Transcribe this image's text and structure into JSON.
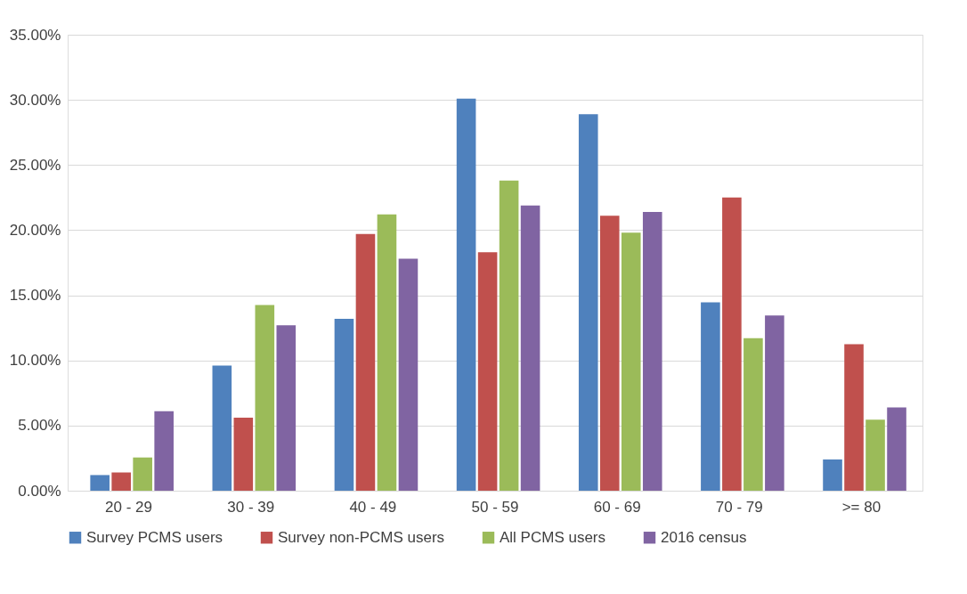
{
  "chart_data": {
    "type": "bar",
    "categories": [
      "20 - 29",
      "30 - 39",
      "40 - 49",
      "50 - 59",
      "60 - 69",
      "70 - 79",
      ">= 80"
    ],
    "series": [
      {
        "name": "Survey PCMS users",
        "color": "#4f81bd",
        "values": [
          1.2,
          9.6,
          13.2,
          30.1,
          28.9,
          14.45,
          2.4
        ]
      },
      {
        "name": "Survey non-PCMS users",
        "color": "#c0504d",
        "values": [
          1.4,
          5.6,
          19.7,
          18.3,
          21.1,
          22.5,
          11.25
        ]
      },
      {
        "name": "All PCMS users",
        "color": "#9bbb59",
        "values": [
          2.55,
          14.25,
          21.2,
          23.8,
          19.8,
          11.7,
          5.45
        ]
      },
      {
        "name": "2016 census",
        "color": "#8064a2",
        "values": [
          6.1,
          12.7,
          17.8,
          21.9,
          21.4,
          13.45,
          6.4
        ]
      }
    ],
    "ylim": [
      0,
      35
    ],
    "yticks": [
      {
        "value": 0,
        "label": "0.00%"
      },
      {
        "value": 5,
        "label": "5.00%"
      },
      {
        "value": 10,
        "label": "10.00%"
      },
      {
        "value": 15,
        "label": "15.00%"
      },
      {
        "value": 20,
        "label": "20.00%"
      },
      {
        "value": 25,
        "label": "25.00%"
      },
      {
        "value": 30,
        "label": "30.00%"
      },
      {
        "value": 35,
        "label": "35.00%"
      }
    ],
    "grid": "y",
    "legend": "bottom"
  }
}
